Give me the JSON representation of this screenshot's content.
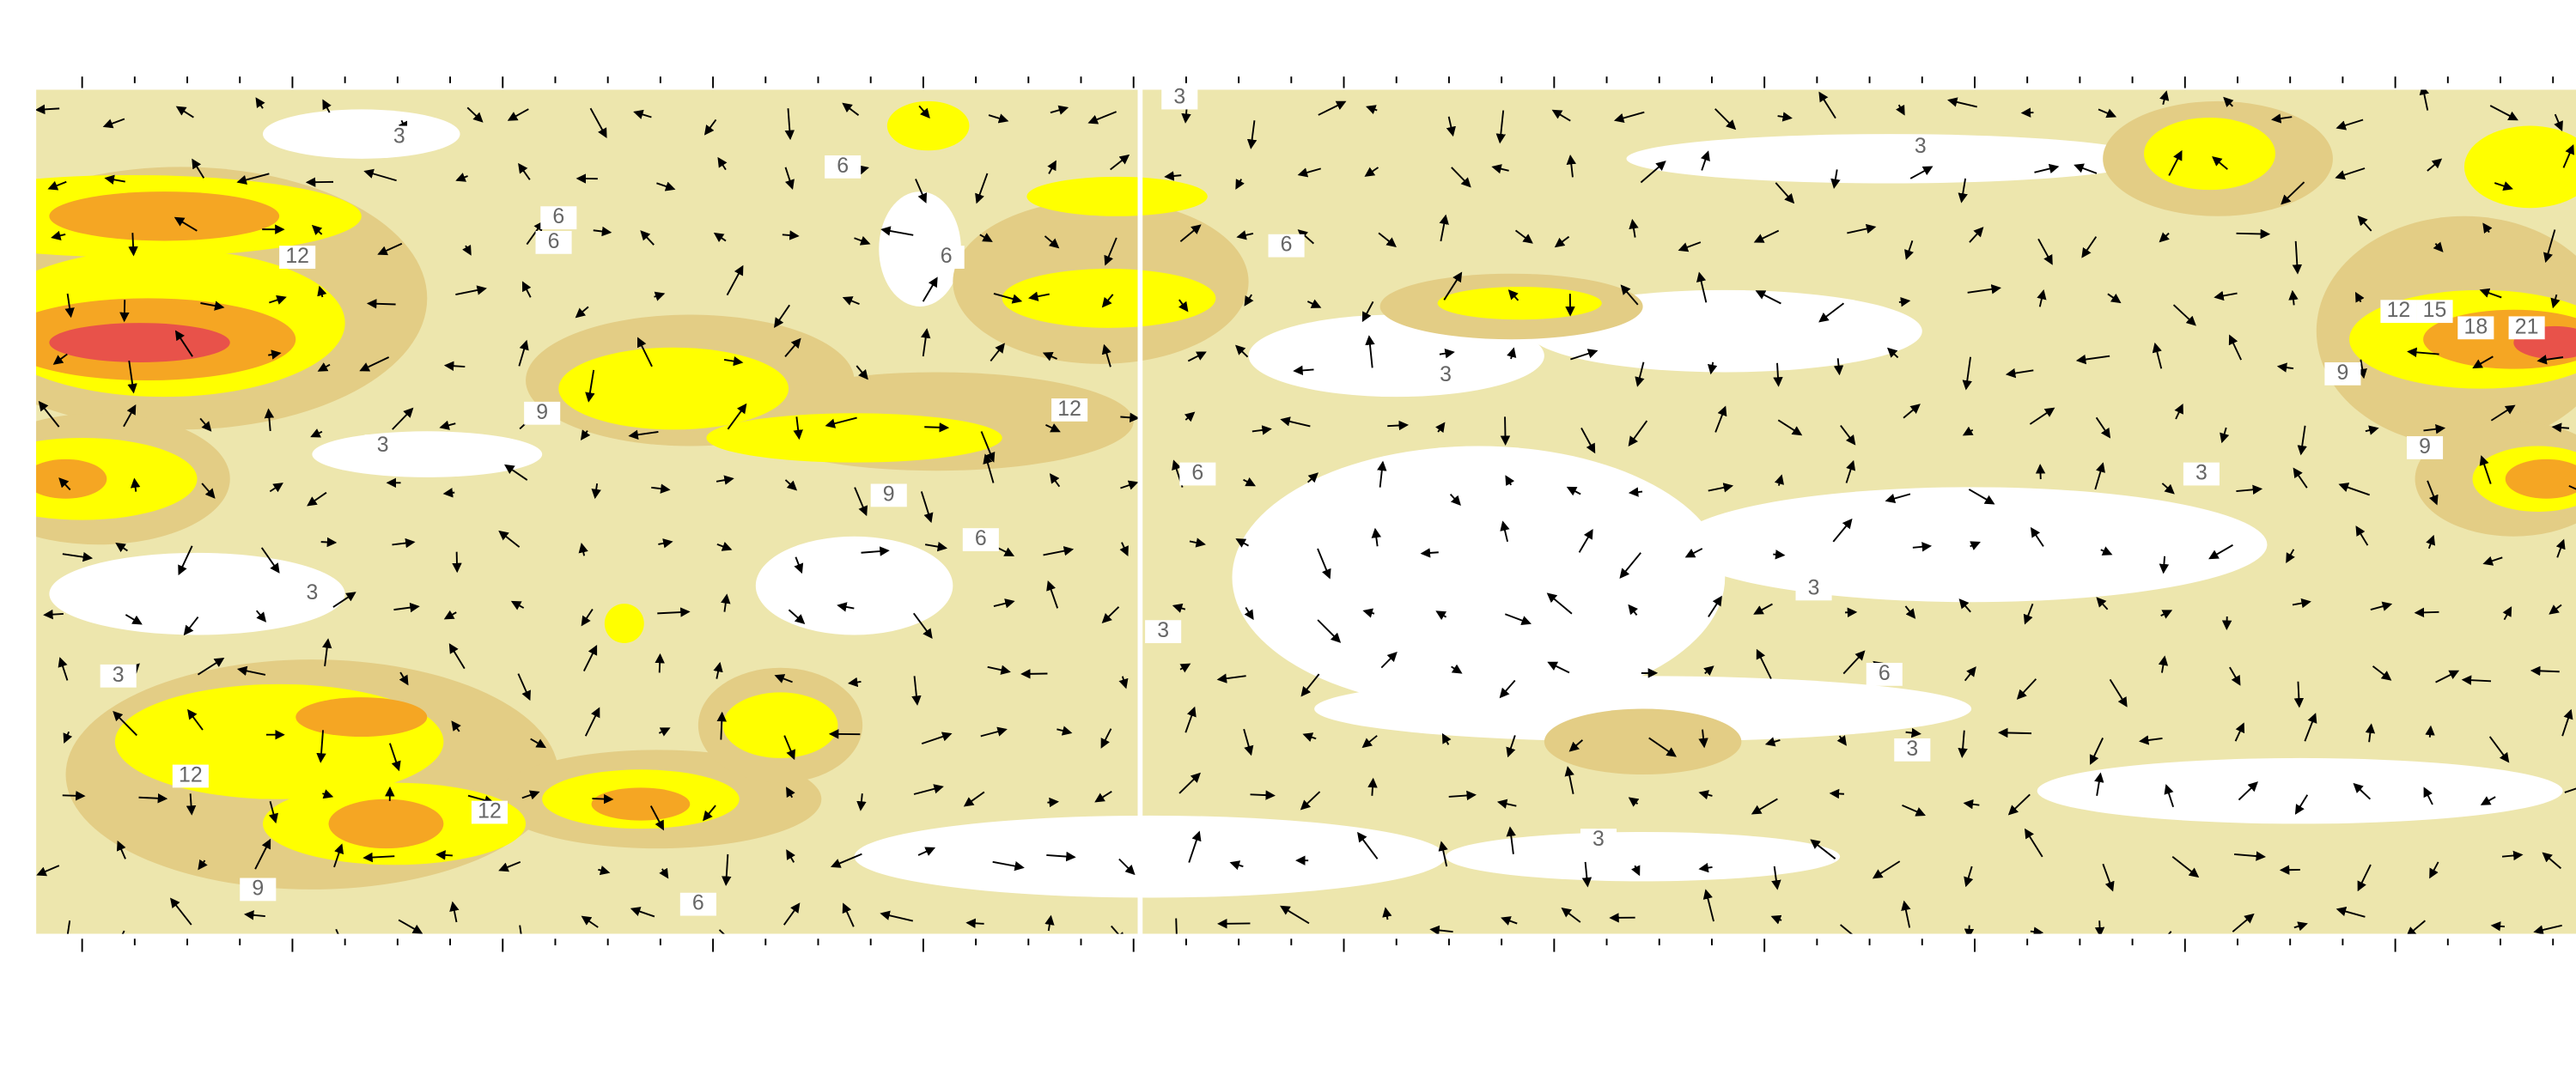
{
  "contour_labels": [
    3,
    6,
    6,
    6,
    12,
    6,
    3,
    3,
    6,
    3,
    12,
    9,
    3,
    9,
    6,
    6,
    3,
    3,
    3,
    3,
    3,
    6,
    12,
    12,
    9,
    6,
    3,
    3,
    12,
    15,
    18,
    21,
    9,
    9
  ]
}
